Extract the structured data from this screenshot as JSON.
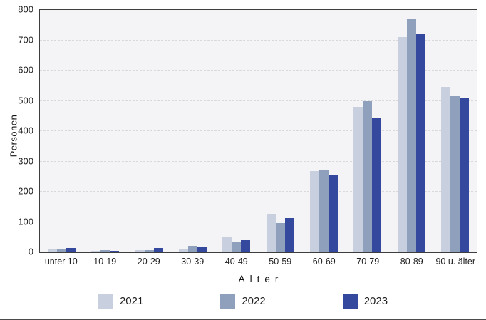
{
  "chart_data": {
    "type": "bar",
    "title": "",
    "categories": [
      "unter 10",
      "10-19",
      "20-29",
      "30-39",
      "40-49",
      "50-59",
      "60-69",
      "70-79",
      "80-89",
      "90 u. älter"
    ],
    "series": [
      {
        "name": "2021",
        "color": "#c8cfdf",
        "values": [
          10,
          5,
          8,
          12,
          52,
          127,
          268,
          480,
          710,
          545
        ]
      },
      {
        "name": "2022",
        "color": "#8fa0bd",
        "values": [
          12,
          8,
          6,
          22,
          36,
          97,
          272,
          500,
          770,
          518
        ]
      },
      {
        "name": "2023",
        "color": "#34499e",
        "values": [
          15,
          5,
          15,
          18,
          40,
          113,
          255,
          443,
          720,
          510
        ]
      }
    ],
    "xlabel": "Alter",
    "ylabel": "Personen",
    "ylim": [
      0,
      800
    ],
    "yticks": [
      0,
      100,
      200,
      300,
      400,
      500,
      600,
      700,
      800
    ],
    "grid": "horizontal-dashed",
    "legend_position": "bottom"
  },
  "legend": [
    {
      "label": "2021",
      "color": "#c8cfdf"
    },
    {
      "label": "2022",
      "color": "#8fa0bd"
    },
    {
      "label": "2023",
      "color": "#34499e"
    }
  ],
  "colors": {
    "plot_background": "#f4f4f6",
    "frame": "#3e3e3e",
    "gridline": "#d9d9dc",
    "bottom_rule": "#4b4b4b"
  }
}
